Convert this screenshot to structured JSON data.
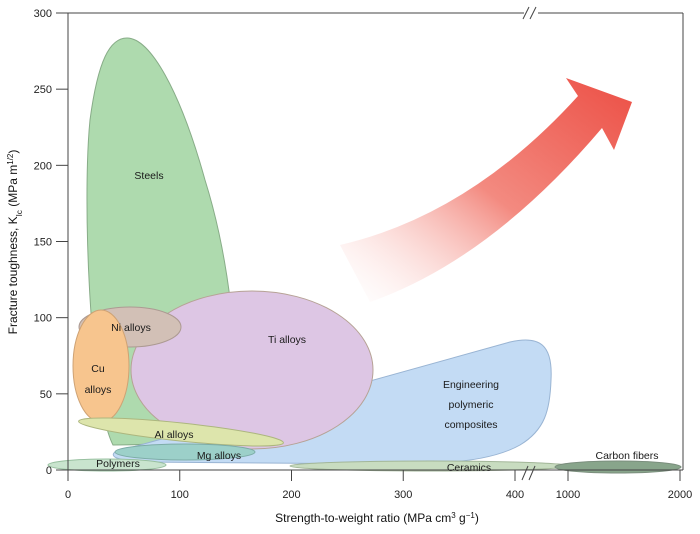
{
  "chart_data": {
    "type": "area",
    "title": "",
    "xlabel": "Strength-to-weight ratio (MPa cm³ g⁻¹)",
    "ylabel": "Fracture toughness, KIc (MPa m1/2)",
    "ylabel_parts": {
      "main": "Fracture toughness, K",
      "sub": "Ic",
      "unit": " (MPa m",
      "sup": "1/2",
      "close": ")"
    },
    "xlabel_parts": {
      "main": "Strength-to-weight ratio (MPa cm",
      "sup1": "3",
      "mid": " g",
      "sup2": "−1",
      "close": ")"
    },
    "x_axis": {
      "segments": [
        {
          "range": [
            0,
            400
          ],
          "ticks": [
            "0",
            "100",
            "200",
            "300",
            "400"
          ]
        },
        {
          "range": [
            1000,
            2000
          ],
          "ticks": [
            "1000",
            "2000"
          ]
        }
      ],
      "broken": true
    },
    "y_axis": {
      "range": [
        0,
        300
      ],
      "ticks": [
        "0",
        "50",
        "100",
        "150",
        "200",
        "250",
        "300"
      ]
    },
    "grid": false,
    "regions": [
      {
        "name": "Steels",
        "x": [
          15,
          150
        ],
        "y": [
          15,
          285
        ],
        "color": "#7cc47c"
      },
      {
        "name": "Ni alloys",
        "x": [
          10,
          125
        ],
        "y": [
          83,
          104
        ],
        "color": "#b79a8a"
      },
      {
        "name": "Cu alloys",
        "x": [
          5,
          55
        ],
        "y": [
          32,
          91
        ],
        "color": "#f2a24a"
      },
      {
        "name": "Ti alloys",
        "x": [
          55,
          270
        ],
        "y": [
          15,
          118
        ],
        "color": "#c9a3d3"
      },
      {
        "name": "Engineering polymeric composites",
        "x": [
          40,
          430
        ],
        "y": [
          5,
          86
        ],
        "color": "#9ec6ee"
      },
      {
        "name": "Al alloys",
        "x": [
          10,
          190
        ],
        "y": [
          16,
          35
        ],
        "color": "#c9d67a"
      },
      {
        "name": "Mg alloys",
        "x": [
          40,
          175
        ],
        "y": [
          9,
          17
        ],
        "color": "#5fb3a8"
      },
      {
        "name": "Polymers",
        "x": [
          8,
          90
        ],
        "y": [
          1,
          8
        ],
        "color": "#a8d4b0"
      },
      {
        "name": "Ceramics",
        "x": [
          200,
          1500
        ],
        "y": [
          1,
          6
        ],
        "color": "#a7c79a"
      },
      {
        "name": "Carbon fibers",
        "x": [
          1000,
          2000
        ],
        "y": [
          1,
          6
        ],
        "color": "#5a8a5e"
      }
    ],
    "arrow": {
      "direction": "up-right",
      "color": "#ee5a4f"
    }
  }
}
